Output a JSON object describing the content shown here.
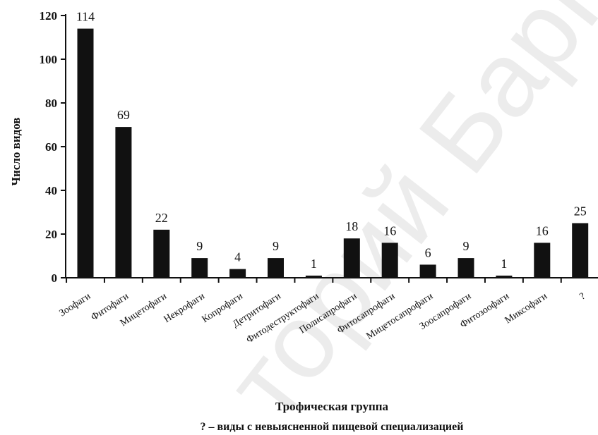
{
  "chart_data": {
    "type": "bar",
    "categories": [
      "Зоофаги",
      "Фитофаги",
      "Мицетофаги",
      "Некрофаги",
      "Копрофаги",
      "Детритофаги",
      "Фитодеструктофаги",
      "Полисапрофаги",
      "Фитосапрофаги",
      "Мицетосапрофаги",
      "Зоосапрофаги",
      "Фитозоофаги",
      "Миксофаги",
      "?"
    ],
    "values": [
      114,
      69,
      22,
      9,
      4,
      9,
      1,
      18,
      16,
      6,
      9,
      1,
      16,
      25
    ],
    "data_labels": [
      "114",
      "69",
      "22",
      "9",
      "4",
      "9",
      "1",
      "18",
      "16",
      "6",
      "9",
      "1",
      "16",
      "25"
    ],
    "ylabel": "Число видов",
    "xlabel": "Трофическая группа",
    "note": "? – виды с невыясненной пищевой специализацией",
    "ylim": [
      0,
      120
    ],
    "yticks": [
      0,
      20,
      40,
      60,
      80,
      100,
      120
    ],
    "ytick_labels": [
      "0",
      "20",
      "40",
      "60",
      "80",
      "100",
      "120"
    ],
    "grid": false,
    "bar_color": "#111111"
  },
  "watermark": {
    "line1": "торий БарГУ",
    "color": "#d9d9d9"
  }
}
